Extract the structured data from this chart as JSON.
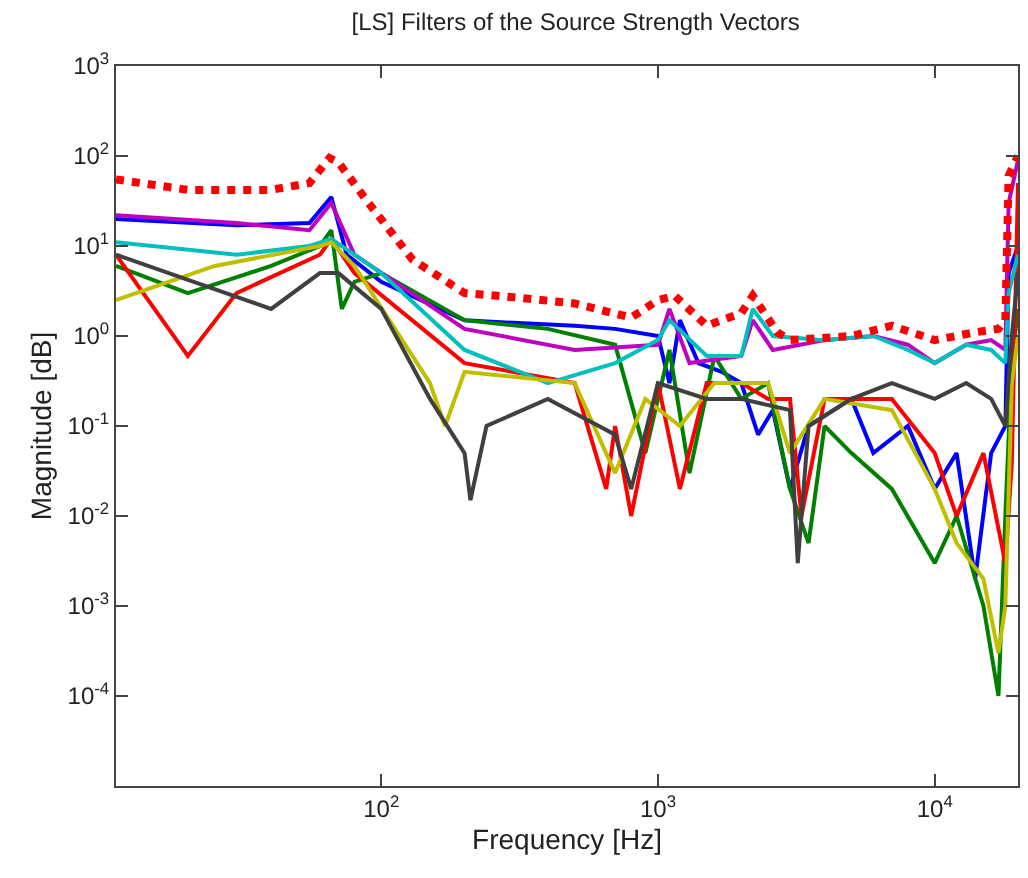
{
  "chart_data": {
    "type": "line",
    "title": "[LS] Filters of the Source Strength Vectors",
    "xlabel": "Frequency [Hz]",
    "ylabel": "Magnitude [dB]",
    "log": "xy",
    "xlim": [
      11,
      20000
    ],
    "ylim": [
      1e-05,
      1000
    ],
    "xticks": [
      {
        "value": 100,
        "label": "10$^{2}$"
      },
      {
        "value": 1000,
        "label": "10$^{3}$"
      },
      {
        "value": 10000,
        "label": "10$^{4}$"
      }
    ],
    "yticks": [
      {
        "value": 0.0001,
        "label": "10$^{-4}$"
      },
      {
        "value": 0.001,
        "label": "10$^{-3}$"
      },
      {
        "value": 0.01,
        "label": "10$^{-2}$"
      },
      {
        "value": 0.1,
        "label": "10$^{-1}$"
      },
      {
        "value": 1,
        "label": "10$^{0}$"
      },
      {
        "value": 10,
        "label": "10$^{1}$"
      },
      {
        "value": 100,
        "label": "10$^{2}$"
      },
      {
        "value": 1000,
        "label": "10$^{3}$"
      }
    ],
    "series": [
      {
        "color": "#0000ff",
        "x": [
          11,
          30,
          55,
          66,
          75,
          100,
          200,
          300,
          500,
          700,
          1000,
          1100,
          1200,
          1400,
          1700,
          2000,
          2300,
          2600,
          3000,
          3500,
          5000,
          6000,
          8000,
          10000,
          12000,
          14000,
          16000,
          18000,
          18500,
          20000
        ],
        "values": [
          20,
          17,
          18,
          35,
          8,
          4,
          1.5,
          1.4,
          1.3,
          1.2,
          1.0,
          0.3,
          1.5,
          0.5,
          0.4,
          0.3,
          0.08,
          0.15,
          0.02,
          0.1,
          0.2,
          0.05,
          0.1,
          0.02,
          0.05,
          0.002,
          0.05,
          0.1,
          5,
          10
        ]
      },
      {
        "color": "#008000",
        "x": [
          11,
          20,
          40,
          60,
          66,
          72,
          80,
          100,
          200,
          400,
          700,
          900,
          1100,
          1300,
          1600,
          2000,
          2500,
          3000,
          3500,
          4000,
          5000,
          7000,
          10000,
          12000,
          15000,
          17000,
          18000,
          19000,
          20000
        ],
        "values": [
          6,
          3,
          6,
          10,
          15,
          2,
          4,
          5,
          1.5,
          1.2,
          0.8,
          0.05,
          0.7,
          0.03,
          0.6,
          0.2,
          0.3,
          0.02,
          0.005,
          0.1,
          0.05,
          0.02,
          0.003,
          0.01,
          0.001,
          0.0001,
          0.01,
          0.5,
          2
        ]
      },
      {
        "color": "#ff0000",
        "x": [
          11,
          20,
          30,
          60,
          66,
          80,
          200,
          500,
          650,
          700,
          800,
          1000,
          1200,
          1500,
          2000,
          2500,
          3000,
          3300,
          4000,
          7000,
          10000,
          12000,
          15000,
          18000,
          19000,
          20000
        ],
        "values": [
          8,
          0.6,
          3,
          8,
          12,
          5,
          0.5,
          0.3,
          0.02,
          0.1,
          0.01,
          0.3,
          0.02,
          0.3,
          0.3,
          0.2,
          0.2,
          0.01,
          0.2,
          0.2,
          0.05,
          0.01,
          0.05,
          0.003,
          0.04,
          50
        ]
      },
      {
        "color": "#bf00bf",
        "x": [
          11,
          30,
          55,
          66,
          80,
          200,
          500,
          1000,
          1100,
          1300,
          2000,
          2200,
          2600,
          4000,
          6000,
          8000,
          10000,
          13000,
          16000,
          18000,
          18500,
          20000
        ],
        "values": [
          22,
          18,
          15,
          30,
          8,
          1.2,
          0.7,
          0.8,
          2,
          0.5,
          0.6,
          1.5,
          0.7,
          0.9,
          1.0,
          0.8,
          0.5,
          0.8,
          0.9,
          0.7,
          30,
          90
        ]
      },
      {
        "color": "#00bfbf",
        "x": [
          11,
          30,
          55,
          66,
          100,
          200,
          400,
          700,
          1000,
          1100,
          1500,
          2000,
          2200,
          2600,
          4000,
          6000,
          8000,
          10000,
          13000,
          16000,
          18000,
          18500,
          20000
        ],
        "values": [
          11,
          8,
          10,
          12,
          5,
          0.7,
          0.3,
          0.5,
          0.9,
          1.5,
          0.6,
          0.6,
          2,
          1,
          0.9,
          1.0,
          0.7,
          0.5,
          0.8,
          0.7,
          0.5,
          3,
          8
        ]
      },
      {
        "color": "#bfbf00",
        "x": [
          11,
          25,
          60,
          66,
          80,
          150,
          170,
          200,
          500,
          700,
          900,
          1200,
          1600,
          2000,
          2500,
          3000,
          4000,
          7000,
          10000,
          12000,
          15000,
          17000,
          18000,
          19000,
          20000
        ],
        "values": [
          2.5,
          6,
          10,
          11,
          6,
          0.3,
          0.1,
          0.4,
          0.3,
          0.03,
          0.2,
          0.1,
          0.3,
          0.3,
          0.3,
          0.05,
          0.2,
          0.15,
          0.02,
          0.005,
          0.002,
          0.0003,
          0.001,
          0.3,
          1
        ]
      },
      {
        "color": "#404040",
        "x": [
          11,
          40,
          60,
          70,
          100,
          150,
          200,
          210,
          240,
          400,
          700,
          800,
          1000,
          1500,
          2000,
          3000,
          3200,
          3500,
          5000,
          7000,
          10000,
          13000,
          16000,
          18000,
          19000,
          20000
        ],
        "values": [
          8,
          2,
          5,
          5,
          2,
          0.2,
          0.05,
          0.015,
          0.1,
          0.2,
          0.08,
          0.02,
          0.3,
          0.2,
          0.2,
          0.15,
          0.003,
          0.1,
          0.2,
          0.3,
          0.2,
          0.3,
          0.2,
          0.1,
          1,
          5
        ]
      },
      {
        "color": "#ff0000",
        "line_style": "dotted",
        "x": [
          11,
          20,
          40,
          55,
          65,
          70,
          90,
          130,
          200,
          300,
          500,
          800,
          1000,
          1150,
          1500,
          2000,
          2200,
          2700,
          3000,
          5000,
          7000,
          10000,
          14000,
          17000,
          18000,
          18500,
          20000
        ],
        "values": [
          55,
          42,
          42,
          50,
          95,
          85,
          30,
          7,
          3,
          2.7,
          2.3,
          1.6,
          2.5,
          2.8,
          1.3,
          1.8,
          2.8,
          1.1,
          0.9,
          1,
          1.3,
          0.9,
          1.1,
          1.2,
          1.5,
          60,
          100
        ]
      }
    ]
  }
}
